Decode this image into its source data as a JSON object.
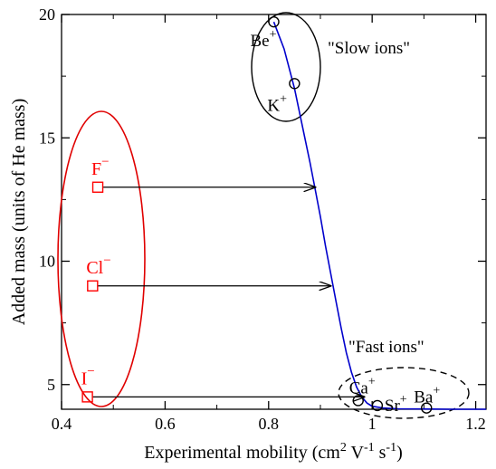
{
  "chart_data": {
    "type": "scatter",
    "xlabel": "Experimental mobility (cm",
    "xlabel_unit_parts": [
      "2",
      " V",
      "-1",
      " s",
      "-1",
      ")"
    ],
    "ylabel": "Added mass (units of He mass)",
    "xlim": [
      0.4,
      1.22
    ],
    "ylim": [
      4.0,
      20.0
    ],
    "x_ticks": [
      0.4,
      0.6,
      0.8,
      1.0,
      1.2
    ],
    "x_tick_labels": [
      "0.4",
      "0.6",
      "0.8",
      "1",
      "1.2"
    ],
    "y_ticks": [
      5,
      10,
      15,
      20
    ],
    "y_tick_labels": [
      "5",
      "10",
      "15",
      "20"
    ],
    "grid": false,
    "curve": {
      "color": "#0000cc",
      "x": [
        0.81,
        0.83,
        0.85,
        0.87,
        0.88,
        0.89,
        0.9,
        0.91,
        0.92,
        0.93,
        0.94,
        0.95,
        0.96,
        0.97,
        0.98,
        0.99,
        1.0,
        1.02,
        1.05,
        1.1,
        1.15,
        1.2,
        1.22
      ],
      "y": [
        19.7,
        18.6,
        17.0,
        15.0,
        14.0,
        12.9,
        11.8,
        10.6,
        9.5,
        8.4,
        7.3,
        6.3,
        5.5,
        4.9,
        4.5,
        4.25,
        4.12,
        4.05,
        4.02,
        4.01,
        4.0,
        4.0,
        4.0
      ]
    },
    "cations": {
      "color": "#000000",
      "points": [
        {
          "name": "Be",
          "charge": "+",
          "x": 0.81,
          "y": 19.7
        },
        {
          "name": "K",
          "charge": "+",
          "x": 0.85,
          "y": 17.2
        },
        {
          "name": "Ca",
          "charge": "+",
          "x": 0.973,
          "y": 4.35
        },
        {
          "name": "Sr",
          "charge": "+",
          "x": 1.01,
          "y": 4.15
        },
        {
          "name": "Ba",
          "charge": "+",
          "x": 1.105,
          "y": 4.05
        }
      ]
    },
    "anions": {
      "color": "#ff0000",
      "points": [
        {
          "name": "F",
          "charge": "−",
          "x": 0.47,
          "y": 13.0,
          "arrow_to_x": 0.89
        },
        {
          "name": "Cl",
          "charge": "−",
          "x": 0.46,
          "y": 9.0,
          "arrow_to_x": 0.92
        },
        {
          "name": "I",
          "charge": "−",
          "x": 0.45,
          "y": 4.5,
          "arrow_to_x": 0.985
        }
      ]
    },
    "annotations": {
      "slow": "\"Slow ions\"",
      "fast": "\"Fast ions\""
    }
  }
}
